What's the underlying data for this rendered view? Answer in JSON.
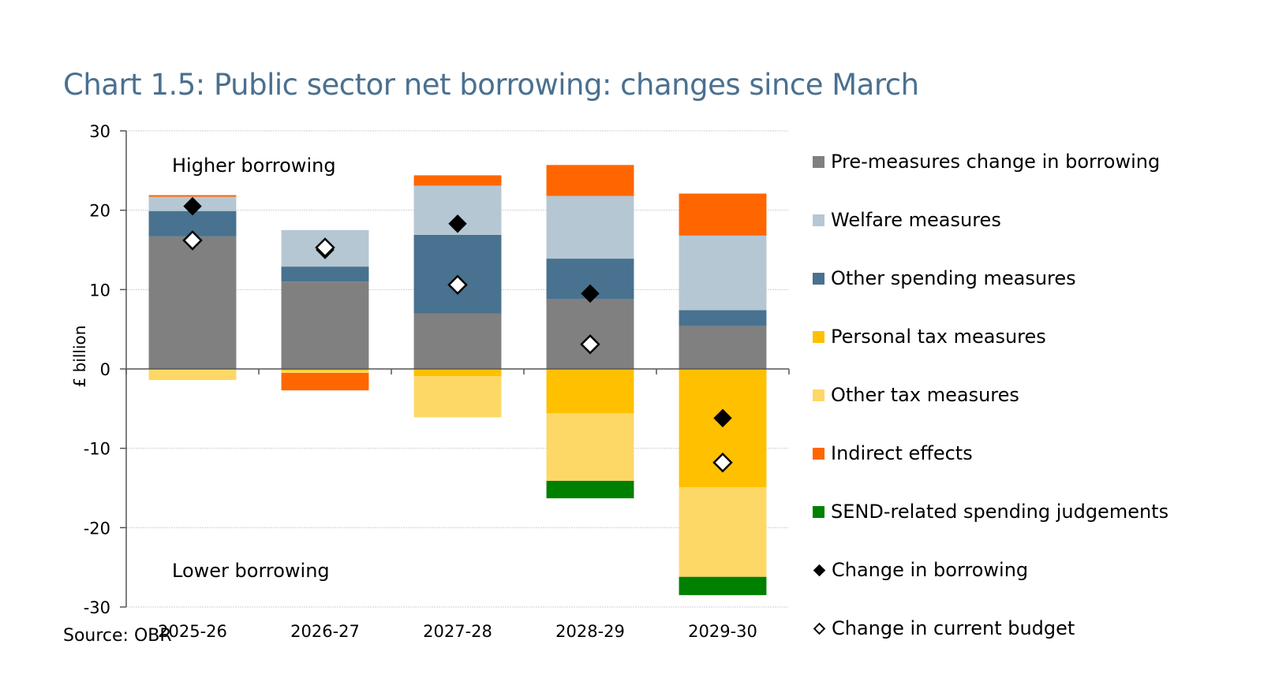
{
  "chart_data": {
    "type": "bar",
    "stacked": true,
    "title": "Chart 1.5: Public sector net borrowing: changes since March",
    "xlabel": "",
    "ylabel": "£ billion",
    "ylim": [
      -30,
      30
    ],
    "yticks": [
      30,
      20,
      10,
      0,
      -10,
      -20,
      -30
    ],
    "grid": true,
    "legend_position": "right",
    "source": "Source: OBR",
    "annotations": {
      "upper": "Higher borrowing",
      "lower": "Lower borrowing"
    },
    "categories": [
      "2025-26",
      "2026-27",
      "2027-28",
      "2028-29",
      "2029-30"
    ],
    "series": [
      {
        "name": "Pre-measures change in borrowing",
        "color": "#808080",
        "values": [
          16.7,
          11.0,
          7.0,
          8.8,
          5.4
        ]
      },
      {
        "name": "Welfare measures",
        "color": "#b5c7d3",
        "values": [
          1.8,
          4.6,
          6.2,
          7.9,
          9.4
        ]
      },
      {
        "name": "Other spending measures",
        "color": "#48728f",
        "values": [
          3.2,
          1.9,
          9.9,
          5.1,
          2.0
        ]
      },
      {
        "name": "Personal tax measures",
        "color": "#ffc000",
        "values": [
          0.0,
          -0.2,
          -0.9,
          -5.6,
          -14.9
        ]
      },
      {
        "name": "Other tax measures",
        "color": "#fdd866",
        "values": [
          -1.4,
          -0.3,
          -5.2,
          -8.5,
          -11.3
        ]
      },
      {
        "name": "Indirect effects",
        "color": "#ff6600",
        "values": [
          0.2,
          -2.2,
          1.3,
          3.9,
          5.3
        ]
      },
      {
        "name": "SEND-related spending judgements",
        "color": "#008000",
        "values": [
          0.0,
          0.0,
          0.0,
          -2.2,
          -2.3
        ]
      }
    ],
    "stack_order_positive": [
      "Pre-measures change in borrowing",
      "Other spending measures",
      "Welfare measures",
      "Indirect effects"
    ],
    "markers": [
      {
        "name": "Change in borrowing",
        "style": "filled-diamond",
        "color": "#000000",
        "values": [
          20.5,
          15.0,
          18.3,
          9.5,
          -6.2
        ]
      },
      {
        "name": "Change in current budget",
        "style": "open-diamond",
        "color": "#ffffff",
        "values": [
          16.2,
          15.3,
          10.6,
          3.1,
          -11.8
        ]
      }
    ]
  }
}
